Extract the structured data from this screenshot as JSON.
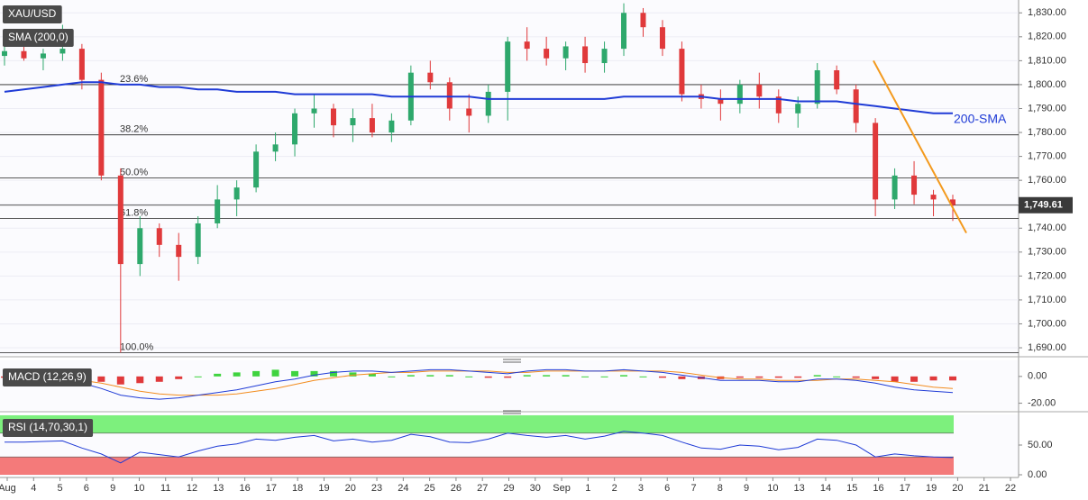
{
  "chart_data": {
    "type": "candlestick",
    "title": "XAU/USD",
    "ylim": [
      1687,
      1835
    ],
    "yticks": [
      {
        "value": 1690,
        "label": "1,690.00"
      },
      {
        "value": 1700,
        "label": "1,700.00"
      },
      {
        "value": 1710,
        "label": "1,710.00"
      },
      {
        "value": 1720,
        "label": "1,720.00"
      },
      {
        "value": 1730,
        "label": "1,730.00"
      },
      {
        "value": 1740,
        "label": "1,740.00"
      },
      {
        "value": 1750,
        "label": "1,750.00"
      },
      {
        "value": 1760,
        "label": "1,760.00"
      },
      {
        "value": 1770,
        "label": "1,770.00"
      },
      {
        "value": 1780,
        "label": "1,780.00"
      },
      {
        "value": 1790,
        "label": "1,790.00"
      },
      {
        "value": 1800,
        "label": "1,800.00"
      },
      {
        "value": 1810,
        "label": "1,810.00"
      },
      {
        "value": 1820,
        "label": "1,820.00"
      },
      {
        "value": 1830,
        "label": "1,830.00"
      }
    ],
    "x_labels": [
      "Aug",
      "4",
      "5",
      "6",
      "9",
      "10",
      "11",
      "12",
      "13",
      "16",
      "17",
      "18",
      "19",
      "20",
      "23",
      "24",
      "25",
      "26",
      "27",
      "29",
      "30",
      "Sep",
      "1",
      "2",
      "3",
      "6",
      "7",
      "8",
      "9",
      "10",
      "13",
      "14",
      "15",
      "16",
      "17",
      "19",
      "20",
      "21",
      "22"
    ],
    "up_color": "#2ea86c",
    "down_color": "#e0393b",
    "ohlc": [
      [
        1812,
        1816,
        1808,
        1814
      ],
      [
        1814,
        1818,
        1810,
        1811
      ],
      [
        1811,
        1815,
        1806,
        1813
      ],
      [
        1813,
        1825,
        1810,
        1815
      ],
      [
        1815,
        1817,
        1798,
        1802
      ],
      [
        1802,
        1805,
        1760,
        1762
      ],
      [
        1762,
        1765,
        1688,
        1725
      ],
      [
        1725,
        1745,
        1720,
        1740
      ],
      [
        1740,
        1742,
        1728,
        1733
      ],
      [
        1733,
        1738,
        1718,
        1728
      ],
      [
        1728,
        1745,
        1725,
        1742
      ],
      [
        1742,
        1758,
        1740,
        1752
      ],
      [
        1752,
        1760,
        1745,
        1757
      ],
      [
        1757,
        1775,
        1755,
        1772
      ],
      [
        1772,
        1780,
        1768,
        1775
      ],
      [
        1775,
        1790,
        1770,
        1788
      ],
      [
        1788,
        1796,
        1782,
        1790
      ],
      [
        1790,
        1792,
        1778,
        1783
      ],
      [
        1783,
        1790,
        1776,
        1786
      ],
      [
        1786,
        1792,
        1778,
        1780
      ],
      [
        1780,
        1788,
        1776,
        1785
      ],
      [
        1785,
        1808,
        1783,
        1805
      ],
      [
        1805,
        1810,
        1798,
        1801
      ],
      [
        1801,
        1803,
        1785,
        1790
      ],
      [
        1790,
        1796,
        1780,
        1787
      ],
      [
        1787,
        1800,
        1784,
        1797
      ],
      [
        1797,
        1820,
        1785,
        1818
      ],
      [
        1818,
        1824,
        1810,
        1815
      ],
      [
        1815,
        1820,
        1808,
        1811
      ],
      [
        1811,
        1818,
        1806,
        1816
      ],
      [
        1816,
        1820,
        1805,
        1809
      ],
      [
        1809,
        1818,
        1805,
        1815
      ],
      [
        1815,
        1834,
        1812,
        1830
      ],
      [
        1830,
        1832,
        1820,
        1824
      ],
      [
        1824,
        1827,
        1812,
        1815
      ],
      [
        1815,
        1818,
        1793,
        1796
      ],
      [
        1796,
        1800,
        1790,
        1794
      ],
      [
        1794,
        1798,
        1785,
        1792
      ],
      [
        1792,
        1802,
        1788,
        1800
      ],
      [
        1800,
        1805,
        1790,
        1795
      ],
      [
        1795,
        1798,
        1784,
        1788
      ],
      [
        1788,
        1795,
        1782,
        1792
      ],
      [
        1792,
        1809,
        1790,
        1806
      ],
      [
        1806,
        1808,
        1796,
        1798
      ],
      [
        1798,
        1800,
        1780,
        1784
      ],
      [
        1784,
        1786,
        1745,
        1752
      ],
      [
        1752,
        1765,
        1748,
        1762
      ],
      [
        1762,
        1768,
        1750,
        1754
      ],
      [
        1754,
        1756,
        1745,
        1752
      ],
      [
        1752,
        1754,
        1743,
        1749.61
      ]
    ],
    "sma": {
      "name": "SMA (200,0)",
      "color": "#1f3bd6",
      "values": [
        1797,
        1798,
        1799,
        1800,
        1801,
        1801,
        1800,
        1800,
        1799,
        1799,
        1798,
        1798,
        1797,
        1797,
        1797,
        1796,
        1796,
        1796,
        1796,
        1796,
        1795,
        1795,
        1795,
        1795,
        1795,
        1794,
        1794,
        1794,
        1794,
        1794,
        1794,
        1794,
        1795,
        1795,
        1795,
        1795,
        1795,
        1794,
        1794,
        1794,
        1794,
        1793,
        1793,
        1793,
        1792,
        1791,
        1790,
        1789,
        1788,
        1788
      ]
    },
    "fib_levels": [
      {
        "value": 1800,
        "label": "23.6%"
      },
      {
        "value": 1779,
        "label": "38.2%"
      },
      {
        "value": 1761,
        "label": "50.0%"
      },
      {
        "value": 1744,
        "label": "61.8%"
      },
      {
        "value": 1688,
        "label": "100.0%"
      }
    ],
    "last_price": {
      "value": 1749.61,
      "label": "1,749.61"
    },
    "trendline": {
      "x": [
        44.9,
        49.7
      ],
      "y": [
        1810,
        1738
      ],
      "color": "#f39a1e"
    },
    "annotation": "200-SMA",
    "macd": {
      "label": "MACD (12,26,9)",
      "ylim": [
        -25,
        12
      ],
      "yticks": [
        {
          "value": 0,
          "label": "0.00"
        },
        {
          "value": -20,
          "label": "-20.00"
        }
      ],
      "macd_color": "#1f3bd6",
      "signal_color": "#f28c1e",
      "hist_up": "#3fd33f",
      "hist_down": "#e0393b",
      "macd": [
        -1,
        -2,
        -2,
        -3,
        -5,
        -9,
        -14,
        -16,
        -17,
        -16,
        -14,
        -12,
        -10,
        -7,
        -4,
        -2,
        1,
        3,
        4,
        4,
        3,
        4,
        5,
        5,
        4,
        3,
        2,
        4,
        5,
        5,
        4,
        4,
        5,
        4,
        3,
        1,
        -1,
        -3,
        -3,
        -3,
        -4,
        -4,
        -2,
        -2,
        -3,
        -5,
        -8,
        -10,
        -11,
        -12
      ],
      "signal": [
        0,
        -1,
        -1,
        -2,
        -3,
        -5,
        -8,
        -11,
        -13,
        -14,
        -14,
        -14,
        -13,
        -11,
        -9,
        -6,
        -3,
        -1,
        1,
        2,
        3,
        3,
        4,
        4,
        4,
        4,
        3,
        3,
        4,
        4,
        4,
        4,
        4,
        4,
        4,
        3,
        1,
        -1,
        -2,
        -2,
        -3,
        -3,
        -3,
        -2,
        -2,
        -3,
        -4,
        -6,
        -8,
        -9
      ],
      "hist": [
        -1,
        -1,
        -1,
        -1,
        -2,
        -4,
        -6,
        -5,
        -4,
        -2,
        0,
        2,
        3,
        4,
        5,
        4,
        4,
        4,
        3,
        2,
        0,
        1,
        1,
        1,
        0,
        -1,
        -1,
        1,
        1,
        1,
        0,
        0,
        1,
        0,
        -1,
        -2,
        -2,
        -2,
        -1,
        -1,
        -1,
        -1,
        1,
        0,
        -1,
        -2,
        -4,
        -4,
        -3,
        -3
      ]
    },
    "rsi": {
      "label": "RSI (14,70,30,1)",
      "ylim": [
        0,
        100
      ],
      "yticks": [
        {
          "value": 50,
          "label": "50.00"
        },
        {
          "value": 0,
          "label": "0.00"
        }
      ],
      "color": "#1f3bd6",
      "levels": [
        70,
        30
      ],
      "upper_color": "#7df07d",
      "lower_color": "#f47a7a",
      "values": [
        55,
        55,
        56,
        57,
        45,
        35,
        20,
        38,
        34,
        30,
        40,
        48,
        52,
        60,
        58,
        63,
        66,
        57,
        60,
        55,
        58,
        68,
        64,
        55,
        54,
        60,
        70,
        66,
        63,
        66,
        60,
        65,
        73,
        70,
        66,
        55,
        45,
        43,
        50,
        48,
        42,
        46,
        60,
        58,
        50,
        30,
        35,
        32,
        30,
        29
      ]
    }
  }
}
